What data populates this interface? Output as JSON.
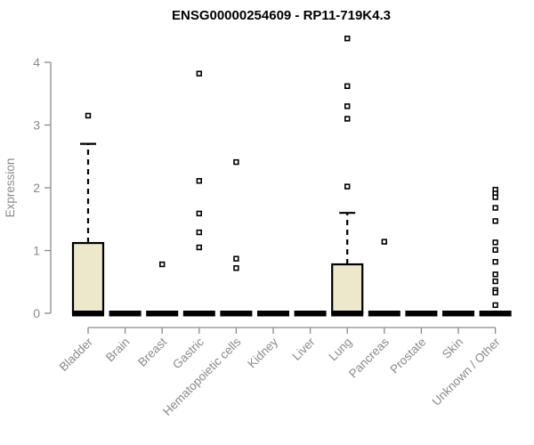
{
  "chart_data": {
    "type": "boxplot",
    "title": "ENSG00000254609 - RP11-719K4.3",
    "xlabel": "",
    "ylabel": "Expression",
    "ylim": [
      0,
      4.4
    ],
    "yticks": [
      0,
      1,
      2,
      3,
      4
    ],
    "grid": false,
    "legend": false,
    "categories": [
      "Bladder",
      "Brain",
      "Breast",
      "Gastric",
      "Hematopoietic cells",
      "Kidney",
      "Liver",
      "Lung",
      "Pancreas",
      "Prostate",
      "Skin",
      "Unknown / Other"
    ],
    "series": [
      {
        "category": "Bladder",
        "whisker_low": 0,
        "q1": 0,
        "median": 0,
        "q3": 1.12,
        "whisker_high": 2.7,
        "outliers": [
          3.15
        ]
      },
      {
        "category": "Brain",
        "whisker_low": 0,
        "q1": 0,
        "median": 0,
        "q3": 0,
        "whisker_high": 0,
        "outliers": []
      },
      {
        "category": "Breast",
        "whisker_low": 0,
        "q1": 0,
        "median": 0,
        "q3": 0,
        "whisker_high": 0,
        "outliers": [
          0.78
        ]
      },
      {
        "category": "Gastric",
        "whisker_low": 0,
        "q1": 0,
        "median": 0,
        "q3": 0,
        "whisker_high": 0,
        "outliers": [
          3.82,
          2.11,
          1.59,
          1.29,
          1.05
        ]
      },
      {
        "category": "Hematopoietic cells",
        "whisker_low": 0,
        "q1": 0,
        "median": 0,
        "q3": 0,
        "whisker_high": 0,
        "outliers": [
          2.41,
          0.87,
          0.72
        ]
      },
      {
        "category": "Kidney",
        "whisker_low": 0,
        "q1": 0,
        "median": 0,
        "q3": 0,
        "whisker_high": 0,
        "outliers": []
      },
      {
        "category": "Liver",
        "whisker_low": 0,
        "q1": 0,
        "median": 0,
        "q3": 0,
        "whisker_high": 0,
        "outliers": []
      },
      {
        "category": "Lung",
        "whisker_low": 0,
        "q1": 0,
        "median": 0,
        "q3": 0.78,
        "whisker_high": 1.6,
        "outliers": [
          4.38,
          3.62,
          3.3,
          3.1,
          2.02
        ]
      },
      {
        "category": "Pancreas",
        "whisker_low": 0,
        "q1": 0,
        "median": 0,
        "q3": 0,
        "whisker_high": 0,
        "outliers": [
          1.14
        ]
      },
      {
        "category": "Prostate",
        "whisker_low": 0,
        "q1": 0,
        "median": 0,
        "q3": 0,
        "whisker_high": 0,
        "outliers": []
      },
      {
        "category": "Skin",
        "whisker_low": 0,
        "q1": 0,
        "median": 0,
        "q3": 0,
        "whisker_high": 0,
        "outliers": []
      },
      {
        "category": "Unknown / Other",
        "whisker_low": 0,
        "q1": 0,
        "median": 0,
        "q3": 0,
        "whisker_high": 0,
        "outliers": [
          1.97,
          1.91,
          1.85,
          1.68,
          1.47,
          1.13,
          1.01,
          0.82,
          0.62,
          0.51,
          0.37,
          0.33,
          0.13
        ]
      }
    ],
    "colors": {
      "box_fill": "#EDE7CC",
      "box_border": "#000000",
      "median": "#000000",
      "whisker": "#000000",
      "outlier_stroke": "#000000",
      "outlier_fill": "#ffffff",
      "axis": "#8a8a8a",
      "tick_text": "#8a8a8a",
      "title_text": "#000000",
      "background": "#ffffff"
    }
  }
}
